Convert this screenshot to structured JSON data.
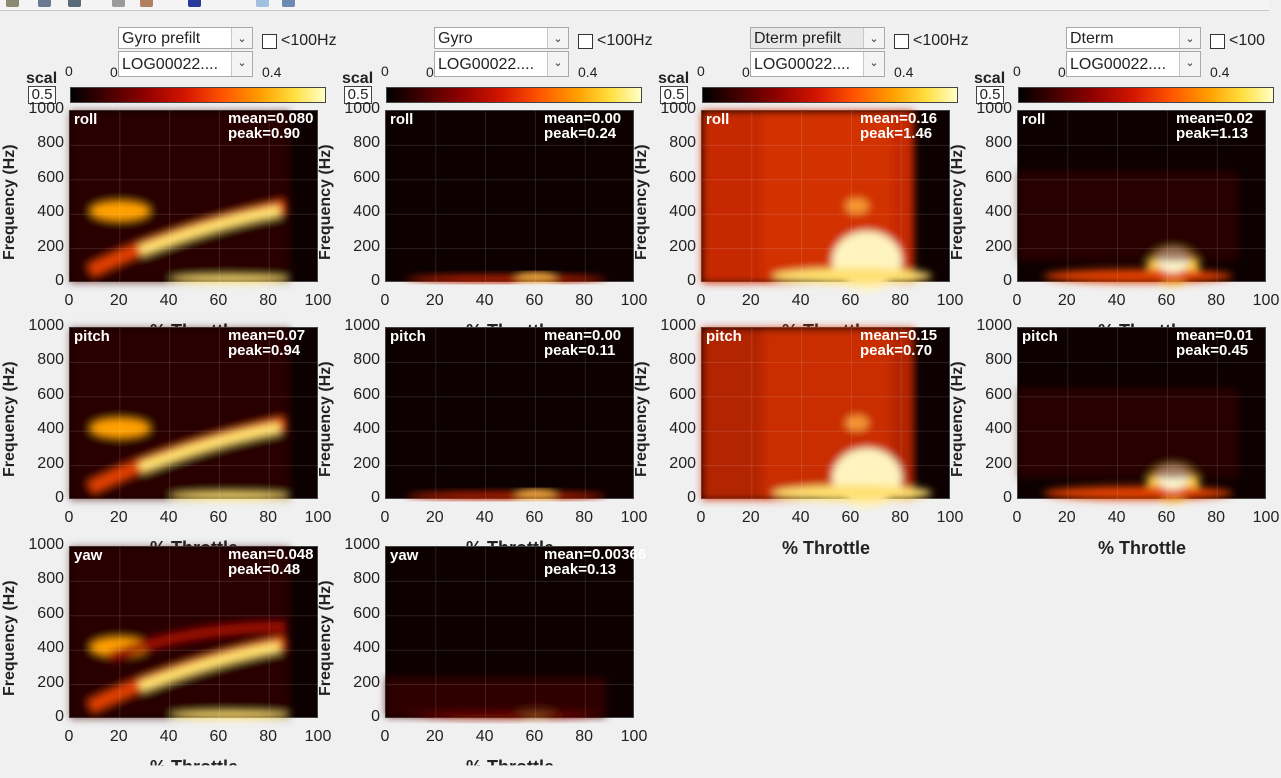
{
  "toolbar": {
    "icons": [
      "save-icon",
      "print-icon",
      "zoom-icon",
      "pan-icon",
      "rotate-icon",
      "datatip-icon",
      "brush-icon",
      "colorbar-icon"
    ]
  },
  "columns": [
    {
      "type_value": "Gyro prefilt",
      "file_value": "LOG00022....",
      "checkbox_label": "<100Hz",
      "cbar_min": "0",
      "cbar_max": "0.4",
      "scal_label": "scal",
      "scal_value": "0.5",
      "scal_min": "0"
    },
    {
      "type_value": "Gyro",
      "file_value": "LOG00022....",
      "checkbox_label": "<100Hz",
      "cbar_min": "0",
      "cbar_max": "0.4",
      "scal_label": "scal",
      "scal_value": "0.5",
      "scal_min": "0"
    },
    {
      "type_value": "Dterm prefilt",
      "file_value": "LOG00022....",
      "checkbox_label": "<100Hz",
      "cbar_min": "0",
      "cbar_max": "0.4",
      "scal_label": "scal",
      "scal_value": "0.5",
      "scal_min": "0"
    },
    {
      "type_value": "Dterm",
      "file_value": "LOG00022....",
      "checkbox_label": "<100",
      "cbar_min": "0",
      "cbar_max": "0.4",
      "scal_label": "scal",
      "scal_value": "0.5",
      "scal_min": "0"
    }
  ],
  "axis": {
    "ylabel": "Frequency (Hz)",
    "xlabel": "% Throttle",
    "yticks": [
      "1000",
      "800",
      "600",
      "400",
      "200",
      "0"
    ],
    "xticks": [
      "0",
      "20",
      "40",
      "60",
      "80",
      "100"
    ]
  },
  "plots": [
    {
      "axis": "roll",
      "mean": "mean=0.080",
      "peak": "peak=0.90",
      "style": "gp"
    },
    {
      "axis": "roll",
      "mean": "mean=0.00",
      "peak": "peak=0.24",
      "style": "g"
    },
    {
      "axis": "roll",
      "mean": "mean=0.16",
      "peak": "peak=1.46",
      "style": "dp"
    },
    {
      "axis": "roll",
      "mean": "mean=0.02",
      "peak": "peak=1.13",
      "style": "d"
    },
    {
      "axis": "pitch",
      "mean": "mean=0.07",
      "peak": "peak=0.94",
      "style": "gp"
    },
    {
      "axis": "pitch",
      "mean": "mean=0.00",
      "peak": "peak=0.11",
      "style": "g"
    },
    {
      "axis": "pitch",
      "mean": "mean=0.15",
      "peak": "peak=0.70",
      "style": "dp"
    },
    {
      "axis": "pitch",
      "mean": "mean=0.01",
      "peak": "peak=0.45",
      "style": "d"
    },
    {
      "axis": "yaw",
      "mean": "mean=0.048",
      "peak": "peak=0.48",
      "style": "gp"
    },
    {
      "axis": "yaw",
      "mean": "mean=0.00366",
      "peak": "peak=0.13",
      "style": "g"
    }
  ],
  "colors": {
    "bg": "#f0f0f0",
    "plot_bg": "#0c0000",
    "heat_low": "#8a0000",
    "heat_mid": "#ff5500",
    "heat_high": "#ffffc8"
  }
}
